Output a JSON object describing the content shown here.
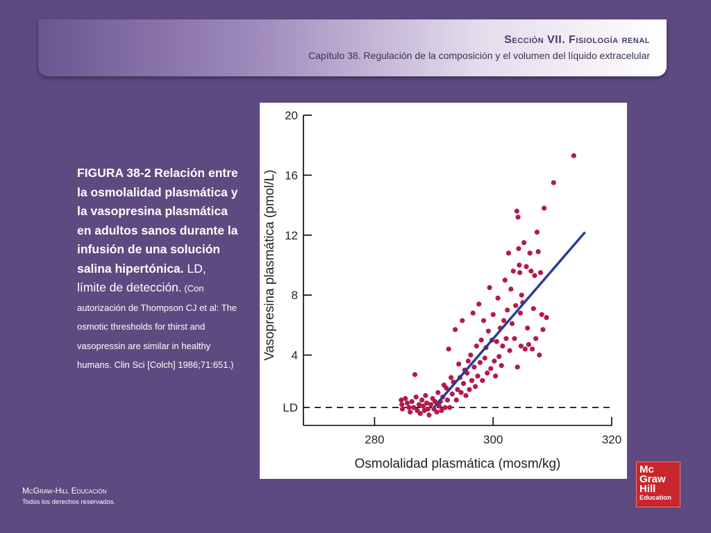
{
  "header": {
    "section": "Sección VII.   Fisiología renal",
    "chapter": "Capítulo 38. Regulación de la composición y el volumen del líquido extracelular"
  },
  "caption": {
    "bold": "FIGURA 38-2 Relación entre la osmolalidad plasmática y la vasopresina plasmática en adultos sanos durante la infusión de una solución salina hipertónica.",
    "normal": " LD, límite de detección.",
    "small": " (Con autorización de Thompson CJ et al: The osmotic thresholds for thirst and vasopressin are similar in healthy humans. Clin Sci [Colch] 1986;71:651.)"
  },
  "footer": {
    "title": "McGraw-Hill Educación",
    "rights": "Todos los derechos reservados."
  },
  "logo": {
    "line1": "Mc",
    "line2": "Graw",
    "line3": "Hill",
    "line4": "Education"
  },
  "colors": {
    "background": "#5e4a80",
    "points": "#b5194a",
    "regression": "#2b3d8f",
    "logo": "#c9252e"
  },
  "chart_data": {
    "type": "scatter",
    "xlabel": "Osmolalidad plasmática (mosm/kg)",
    "ylabel": "Vasopresina plasmática (pmol/L)",
    "xlim": [
      268,
      320
    ],
    "ylim": [
      0,
      20
    ],
    "xticks": [
      280,
      300,
      320
    ],
    "yticks": [
      4,
      8,
      12,
      16,
      20
    ],
    "detection_limit": {
      "label": "LD",
      "y": 0.5
    },
    "regression_line": {
      "x": [
        290,
        315.5
      ],
      "y": [
        0.5,
        12.2
      ]
    },
    "points": [
      [
        284.5,
        1.0
      ],
      [
        284.6,
        0.7
      ],
      [
        284.7,
        0.4
      ],
      [
        285.2,
        1.1
      ],
      [
        285.5,
        0.8
      ],
      [
        285.8,
        0.5
      ],
      [
        286.0,
        0.2
      ],
      [
        286.3,
        0.9
      ],
      [
        286.6,
        0.5
      ],
      [
        286.8,
        2.7
      ],
      [
        287.0,
        1.2
      ],
      [
        287.2,
        0.3
      ],
      [
        287.5,
        0.7
      ],
      [
        287.7,
        0.1
      ],
      [
        288.0,
        1.0
      ],
      [
        288.2,
        0.6
      ],
      [
        288.4,
        0.3
      ],
      [
        288.6,
        1.3
      ],
      [
        288.8,
        0.8
      ],
      [
        289.0,
        0.4
      ],
      [
        289.2,
        0.0
      ],
      [
        289.5,
        0.7
      ],
      [
        289.8,
        1.1
      ],
      [
        290.0,
        0.4
      ],
      [
        290.2,
        0.9
      ],
      [
        290.5,
        0.2
      ],
      [
        290.7,
        1.5
      ],
      [
        290.9,
        0.6
      ],
      [
        291.1,
        0.9
      ],
      [
        291.3,
        0.3
      ],
      [
        291.5,
        1.2
      ],
      [
        291.7,
        2.0
      ],
      [
        291.9,
        0.5
      ],
      [
        292.1,
        1.8
      ],
      [
        292.3,
        1.0
      ],
      [
        292.5,
        4.4
      ],
      [
        292.7,
        0.5
      ],
      [
        292.9,
        2.5
      ],
      [
        293.1,
        1.4
      ],
      [
        293.3,
        2.2
      ],
      [
        293.6,
        5.7
      ],
      [
        293.8,
        1.0
      ],
      [
        294.0,
        1.7
      ],
      [
        294.2,
        3.4
      ],
      [
        294.4,
        2.5
      ],
      [
        294.6,
        1.5
      ],
      [
        294.8,
        6.3
      ],
      [
        295.0,
        2.1
      ],
      [
        295.2,
        3.0
      ],
      [
        295.4,
        1.3
      ],
      [
        295.6,
        2.8
      ],
      [
        295.8,
        3.6
      ],
      [
        296.0,
        1.7
      ],
      [
        296.2,
        4.0
      ],
      [
        296.4,
        2.3
      ],
      [
        296.6,
        6.8
      ],
      [
        296.8,
        3.2
      ],
      [
        297.0,
        1.9
      ],
      [
        297.2,
        4.6
      ],
      [
        297.4,
        2.6
      ],
      [
        297.6,
        7.4
      ],
      [
        297.8,
        3.5
      ],
      [
        298.0,
        5.0
      ],
      [
        298.2,
        2.3
      ],
      [
        298.4,
        6.3
      ],
      [
        298.6,
        3.8
      ],
      [
        298.8,
        4.5
      ],
      [
        299.0,
        2.8
      ],
      [
        299.2,
        5.6
      ],
      [
        299.4,
        8.5
      ],
      [
        299.6,
        3.1
      ],
      [
        299.8,
        5.0
      ],
      [
        300.0,
        6.7
      ],
      [
        300.2,
        3.6
      ],
      [
        300.4,
        2.6
      ],
      [
        300.6,
        4.9
      ],
      [
        300.8,
        7.8
      ],
      [
        301.0,
        3.9
      ],
      [
        301.2,
        5.8
      ],
      [
        301.4,
        3.3
      ],
      [
        301.6,
        4.6
      ],
      [
        301.8,
        6.3
      ],
      [
        302.0,
        9.0
      ],
      [
        302.2,
        5.1
      ],
      [
        302.4,
        7.0
      ],
      [
        302.6,
        10.8
      ],
      [
        302.8,
        4.3
      ],
      [
        303.0,
        8.4
      ],
      [
        303.2,
        6.1
      ],
      [
        303.4,
        9.6
      ],
      [
        303.6,
        5.1
      ],
      [
        303.8,
        7.3
      ],
      [
        304.0,
        13.6
      ],
      [
        304.1,
        3.2
      ],
      [
        304.2,
        13.2
      ],
      [
        304.3,
        11.1
      ],
      [
        304.4,
        10.0
      ],
      [
        304.5,
        9.5
      ],
      [
        304.6,
        6.8
      ],
      [
        304.7,
        4.6
      ],
      [
        304.8,
        8.0
      ],
      [
        305.0,
        7.5
      ],
      [
        305.2,
        11.5
      ],
      [
        305.4,
        4.4
      ],
      [
        305.6,
        9.9
      ],
      [
        305.8,
        5.8
      ],
      [
        306.0,
        4.7
      ],
      [
        306.2,
        10.8
      ],
      [
        306.4,
        9.6
      ],
      [
        306.6,
        4.4
      ],
      [
        306.8,
        7.1
      ],
      [
        307.0,
        9.3
      ],
      [
        307.2,
        5.1
      ],
      [
        307.4,
        12.2
      ],
      [
        307.6,
        10.9
      ],
      [
        307.8,
        4.0
      ],
      [
        308.0,
        9.5
      ],
      [
        308.2,
        6.7
      ],
      [
        308.4,
        5.7
      ],
      [
        308.6,
        13.8
      ],
      [
        309.0,
        6.5
      ],
      [
        310.2,
        15.5
      ],
      [
        313.6,
        17.3
      ]
    ]
  }
}
